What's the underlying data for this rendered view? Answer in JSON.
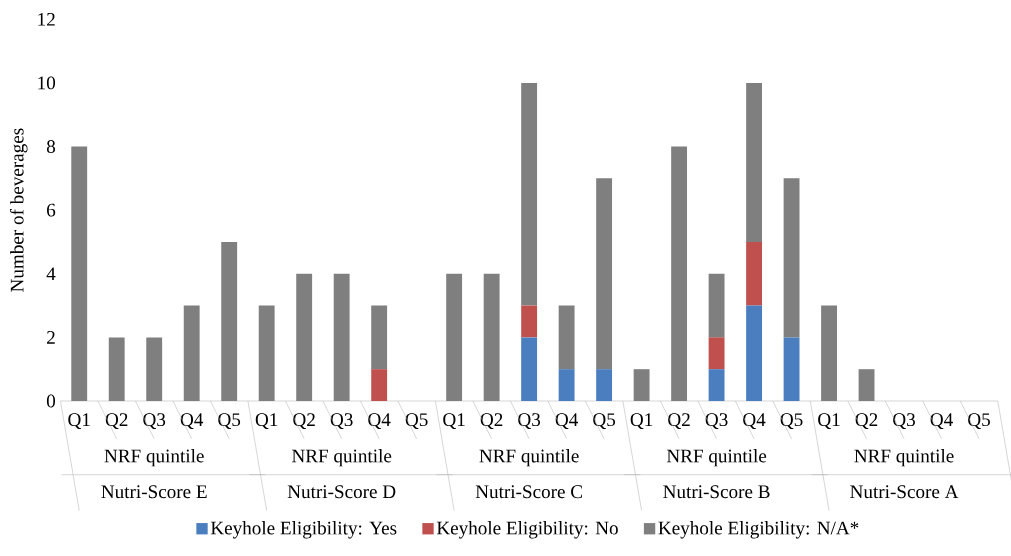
{
  "chart_data": {
    "type": "bar",
    "stacked": true,
    "ylabel": "Number of beverages",
    "categories": [
      "Q1",
      "Q2",
      "Q3",
      "Q4",
      "Q5",
      "Q1",
      "Q2",
      "Q3",
      "Q4",
      "Q5",
      "Q1",
      "Q2",
      "Q3",
      "Q4",
      "Q5",
      "Q1",
      "Q2",
      "Q3",
      "Q4",
      "Q5",
      "Q1",
      "Q2",
      "Q3",
      "Q4",
      "Q5"
    ],
    "series": [
      {
        "name": "Keyhole Eligibility: Yes",
        "color": "#4a7ebf",
        "values": [
          0,
          0,
          0,
          0,
          0,
          0,
          0,
          0,
          0,
          0,
          0,
          0,
          2,
          1,
          1,
          0,
          0,
          1,
          3,
          2,
          0,
          0,
          0,
          0,
          0
        ]
      },
      {
        "name": "Keyhole Eligibility: No",
        "color": "#c0504d",
        "values": [
          0,
          0,
          0,
          0,
          0,
          0,
          0,
          0,
          1,
          0,
          0,
          0,
          1,
          0,
          0,
          0,
          0,
          1,
          2,
          0,
          0,
          0,
          0,
          0,
          0
        ]
      },
      {
        "name": "Keyhole Eligibility: N/A*",
        "color": "#7f7f7f",
        "values": [
          8,
          2,
          2,
          3,
          5,
          3,
          4,
          4,
          2,
          0,
          4,
          4,
          7,
          2,
          6,
          1,
          8,
          2,
          5,
          5,
          3,
          1,
          0,
          0,
          0
        ]
      }
    ],
    "annotations": [
      "NRF quintile",
      "Nutri-Score E",
      "NRF quintile",
      "Nutri-Score D",
      "NRF quintile",
      "Nutri-Score C",
      "NRF quintile",
      "Nutri-Score B",
      "NRF quintile",
      "Nutri-Score A"
    ],
    "ylim": [
      0,
      12
    ],
    "yticks": [
      0,
      2,
      4,
      6,
      8,
      10,
      12
    ],
    "legend": "bottom"
  }
}
